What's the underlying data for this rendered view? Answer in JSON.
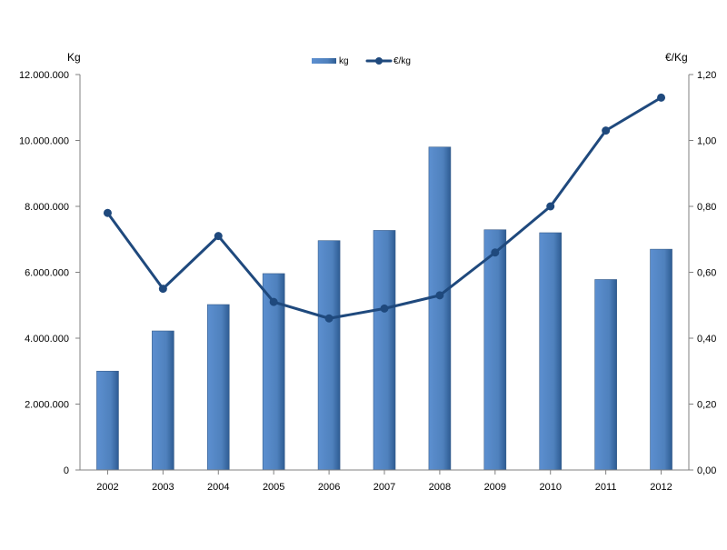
{
  "chart_data": {
    "type": "bar",
    "categories": [
      "2002",
      "2003",
      "2004",
      "2005",
      "2006",
      "2007",
      "2008",
      "2009",
      "2010",
      "2011",
      "2012"
    ],
    "series": [
      {
        "name": "kg",
        "type": "bar",
        "axis": "left",
        "color": "#4F81BD",
        "values": [
          3000000,
          4220000,
          5020000,
          5960000,
          6960000,
          7270000,
          9800000,
          7290000,
          7200000,
          5780000,
          6700000
        ]
      },
      {
        "name": "€/kg",
        "type": "line",
        "axis": "right",
        "color": "#1F497D",
        "values": [
          0.78,
          0.55,
          0.71,
          0.51,
          0.46,
          0.49,
          0.53,
          0.66,
          0.8,
          1.03,
          1.13
        ]
      }
    ],
    "yaxis_left": {
      "label": "Kg",
      "min": 0,
      "max": 12000000,
      "ticks": [
        "0",
        "2.000.000",
        "4.000.000",
        "6.000.000",
        "8.000.000",
        "10.000.000",
        "12.000.000"
      ]
    },
    "yaxis_right": {
      "label": "€/Kg",
      "min": 0,
      "max": 1.2,
      "ticks": [
        "0,00",
        "0,20",
        "0,40",
        "0,60",
        "0,80",
        "1,00",
        "1,20"
      ]
    },
    "legend": {
      "position": "top-center",
      "items": [
        "kg",
        "€/kg"
      ]
    },
    "grid": false
  }
}
